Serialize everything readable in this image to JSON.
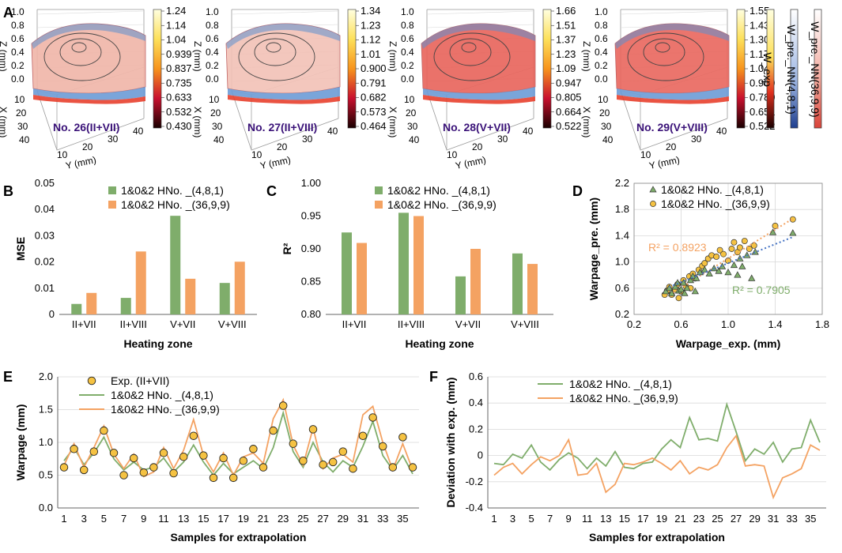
{
  "panel_labels": [
    "A",
    "B",
    "C",
    "D",
    "E",
    "F"
  ],
  "surfaces": [
    {
      "label": "No. 26(II+VII)",
      "colorbar": [
        "1.24",
        "1.14",
        "1.04",
        "0.939",
        "0.837",
        "0.735",
        "0.633",
        "0.532",
        "0.430"
      ],
      "tint": "#f0b5a8"
    },
    {
      "label": "No. 27(II+VIII)",
      "colorbar": [
        "1.34",
        "1.23",
        "1.12",
        "1.01",
        "0.900",
        "0.791",
        "0.682",
        "0.573",
        "0.464"
      ],
      "tint": "#f2c1b6"
    },
    {
      "label": "No. 28(V+VII)",
      "colorbar": [
        "1.66",
        "1.51",
        "1.37",
        "1.23",
        "1.09",
        "0.947",
        "0.805",
        "0.664",
        "0.522"
      ],
      "tint": "#e8635a"
    },
    {
      "label": "No. 29(V+VIII)",
      "colorbar": [
        "1.55",
        "1.43",
        "1.30",
        "1.17",
        "1.04",
        "0.909",
        "0.780",
        "0.651",
        "0.522"
      ],
      "tint": "#e9675e"
    }
  ],
  "axes3d": {
    "z_label": "Z (mm)",
    "x_label": "X (mm)",
    "y_label": "Y (mm)",
    "z_ticks": [
      "1.0",
      "0.8",
      "0.6",
      "0.4",
      "0.2",
      "0.0"
    ],
    "x_ticks": [
      "10",
      "20",
      "30",
      "40"
    ],
    "y_ticks": [
      "10",
      "20",
      "30",
      "40"
    ]
  },
  "legend_bars": [
    "W_exp",
    "W_pre._NN(4,8,1)",
    "W_pre._NN(36,9,9)"
  ],
  "colors": {
    "green": "#7fad6b",
    "orange": "#f4a262",
    "blue": "#4472c4",
    "gold": "#f5c242",
    "grid": "#d9d9d9",
    "title_purple": "#3a1278"
  },
  "chart_data": [
    {
      "id": "B",
      "type": "bar",
      "categories": [
        "II+VII",
        "II+VIII",
        "V+VII",
        "V+VIII"
      ],
      "series": [
        {
          "name": "1&0&2 HNo. _(4,8,1)",
          "values": [
            0.004,
            0.0063,
            0.0376,
            0.012
          ]
        },
        {
          "name": "1&0&2 HNo. _(36,9,9)",
          "values": [
            0.0082,
            0.024,
            0.0136,
            0.0201
          ]
        }
      ],
      "xlabel": "Heating zone",
      "ylabel": "MSE",
      "ylim": [
        0,
        0.05
      ],
      "yticks": [
        "0",
        "0.01",
        "0.02",
        "0.03",
        "0.04",
        "0.05"
      ]
    },
    {
      "id": "C",
      "type": "bar",
      "categories": [
        "II+VII",
        "II+VIII",
        "V+VII",
        "V+VIII"
      ],
      "series": [
        {
          "name": "1&0&2 HNo. _(4,8,1)",
          "values": [
            0.925,
            0.955,
            0.858,
            0.893
          ]
        },
        {
          "name": "1&0&2 HNo. _(36,9,9)",
          "values": [
            0.909,
            0.95,
            0.9,
            0.877
          ]
        }
      ],
      "xlabel": "Heating zone",
      "ylabel": "R²",
      "ylim": [
        0.8,
        1.0
      ],
      "yticks": [
        "0.80",
        "0.85",
        "0.90",
        "0.95",
        "1.00"
      ]
    },
    {
      "id": "D",
      "type": "scatter",
      "series": [
        {
          "name": "1&0&2 HNo. _(4,8,1)",
          "marker": "triangle",
          "fit_r2": "R² = 0.7905",
          "fit": [
            [
              0.5,
              0.62
            ],
            [
              1.55,
              1.38
            ]
          ],
          "points": [
            [
              0.47,
              0.55
            ],
            [
              0.5,
              0.6
            ],
            [
              0.52,
              0.52
            ],
            [
              0.55,
              0.62
            ],
            [
              0.58,
              0.56
            ],
            [
              0.6,
              0.58
            ],
            [
              0.62,
              0.68
            ],
            [
              0.65,
              0.6
            ],
            [
              0.68,
              0.72
            ],
            [
              0.7,
              0.78
            ],
            [
              0.73,
              0.75
            ],
            [
              0.76,
              0.84
            ],
            [
              0.8,
              0.88
            ],
            [
              0.84,
              0.82
            ],
            [
              0.88,
              0.9
            ],
            [
              0.92,
              0.86
            ],
            [
              0.95,
              0.93
            ],
            [
              1.0,
              0.84
            ],
            [
              1.05,
              0.95
            ],
            [
              1.08,
              0.8
            ],
            [
              1.1,
              1.05
            ],
            [
              1.12,
              0.93
            ],
            [
              1.16,
              1.1
            ],
            [
              1.2,
              0.75
            ],
            [
              1.23,
              1.15
            ],
            [
              1.38,
              1.45
            ],
            [
              1.55,
              1.44
            ],
            [
              0.57,
              0.68
            ],
            [
              0.63,
              0.52
            ],
            [
              0.72,
              0.55
            ]
          ]
        },
        {
          "name": "1&0&2 HNo. _(36,9,9)",
          "marker": "circle",
          "fit_r2": "R² = 0.8923",
          "fit": [
            [
              0.5,
              0.5
            ],
            [
              1.55,
              1.66
            ]
          ],
          "points": [
            [
              0.46,
              0.5
            ],
            [
              0.48,
              0.56
            ],
            [
              0.5,
              0.62
            ],
            [
              0.52,
              0.5
            ],
            [
              0.55,
              0.58
            ],
            [
              0.57,
              0.66
            ],
            [
              0.6,
              0.55
            ],
            [
              0.62,
              0.72
            ],
            [
              0.64,
              0.63
            ],
            [
              0.67,
              0.78
            ],
            [
              0.7,
              0.82
            ],
            [
              0.72,
              0.75
            ],
            [
              0.75,
              0.88
            ],
            [
              0.78,
              0.94
            ],
            [
              0.8,
              0.98
            ],
            [
              0.83,
              1.05
            ],
            [
              0.86,
              1.1
            ],
            [
              0.9,
              1.08
            ],
            [
              0.93,
              1.18
            ],
            [
              0.96,
              1.12
            ],
            [
              1.0,
              1.02
            ],
            [
              1.03,
              1.2
            ],
            [
              1.05,
              1.3
            ],
            [
              1.08,
              1.15
            ],
            [
              1.1,
              1.22
            ],
            [
              1.14,
              1.32
            ],
            [
              1.18,
              1.2
            ],
            [
              1.22,
              1.25
            ],
            [
              1.4,
              1.55
            ],
            [
              1.55,
              1.65
            ],
            [
              0.58,
              0.45
            ],
            [
              0.68,
              0.6
            ]
          ]
        }
      ],
      "xlabel": "Warpage_exp. (mm)",
      "ylabel": "Warpage_pre. (mm)",
      "xlim": [
        0.2,
        1.8
      ],
      "ylim": [
        0.2,
        2.2
      ],
      "xticks": [
        "0.2",
        "0.6",
        "1.0",
        "1.4",
        "1.8"
      ],
      "yticks": [
        "0.2",
        "0.6",
        "1.0",
        "1.4",
        "1.8",
        "2.2"
      ]
    },
    {
      "id": "E",
      "type": "line",
      "x": [
        1,
        2,
        3,
        4,
        5,
        6,
        7,
        8,
        9,
        10,
        11,
        12,
        13,
        14,
        15,
        16,
        17,
        18,
        19,
        20,
        21,
        22,
        23,
        24,
        25,
        26,
        27,
        28,
        29,
        30,
        31,
        32,
        33,
        34,
        35,
        36
      ],
      "series": [
        {
          "name": "Exp. (II+VII)",
          "marker": "circle",
          "values": [
            0.62,
            0.9,
            0.58,
            0.86,
            1.18,
            0.84,
            0.5,
            0.76,
            0.54,
            0.62,
            0.84,
            0.53,
            0.78,
            1.1,
            0.8,
            0.46,
            0.76,
            0.46,
            0.72,
            0.9,
            0.62,
            1.18,
            1.56,
            0.98,
            0.72,
            1.2,
            0.66,
            0.7,
            0.86,
            0.6,
            1.1,
            1.38,
            0.94,
            0.62,
            1.08,
            0.62
          ]
        },
        {
          "name": "1&0&2 HNo. _(4,8,1)",
          "values": [
            0.72,
            0.92,
            0.66,
            0.84,
            1.08,
            0.75,
            0.58,
            0.7,
            0.58,
            0.62,
            0.76,
            0.55,
            0.7,
            0.96,
            0.7,
            0.5,
            0.68,
            0.52,
            0.62,
            0.72,
            0.6,
            0.92,
            1.45,
            0.86,
            0.62,
            1.0,
            0.7,
            0.55,
            0.72,
            0.62,
            0.94,
            1.32,
            0.8,
            0.58,
            0.8,
            0.52
          ]
        },
        {
          "name": "1&0&2 HNo. _(36,9,9)",
          "values": [
            0.65,
            0.98,
            0.62,
            0.92,
            1.25,
            0.82,
            0.6,
            0.82,
            0.48,
            0.55,
            0.92,
            0.6,
            0.88,
            1.35,
            0.8,
            0.55,
            0.84,
            0.5,
            0.78,
            0.84,
            0.68,
            1.36,
            1.65,
            0.96,
            0.65,
            1.22,
            0.6,
            0.76,
            0.82,
            0.7,
            1.42,
            1.55,
            1.0,
            0.58,
            0.98,
            0.58
          ]
        }
      ],
      "xlabel": "Samples for extrapolation",
      "ylabel": "Warpage (mm)",
      "ylim": [
        0,
        2.0
      ],
      "yticks": [
        "0.0",
        "0.5",
        "1.0",
        "1.5",
        "2.0"
      ],
      "xticks": [
        "1",
        "3",
        "5",
        "7",
        "9",
        "11",
        "13",
        "15",
        "17",
        "19",
        "21",
        "23",
        "25",
        "27",
        "29",
        "31",
        "33",
        "35"
      ]
    },
    {
      "id": "F",
      "type": "line",
      "x": [
        1,
        2,
        3,
        4,
        5,
        6,
        7,
        8,
        9,
        10,
        11,
        12,
        13,
        14,
        15,
        16,
        17,
        18,
        19,
        20,
        21,
        22,
        23,
        24,
        25,
        26,
        27,
        28,
        29,
        30,
        31,
        32,
        33,
        34,
        35,
        36
      ],
      "series": [
        {
          "name": "1&0&2 HNo. _(4,8,1)",
          "values": [
            -0.06,
            -0.07,
            0.01,
            -0.02,
            0.08,
            -0.05,
            -0.11,
            -0.03,
            0.02,
            -0.02,
            -0.1,
            -0.02,
            -0.08,
            0.03,
            -0.09,
            -0.1,
            -0.06,
            -0.05,
            0.05,
            0.12,
            0.06,
            0.29,
            0.12,
            0.13,
            0.11,
            0.39,
            0.18,
            -0.04,
            0.05,
            0.01,
            0.1,
            -0.05,
            0.05,
            0.06,
            0.27,
            0.1
          ]
        },
        {
          "name": "1&0&2 HNo. _(36,9,9)",
          "values": [
            -0.15,
            -0.09,
            -0.06,
            -0.14,
            -0.07,
            -0.01,
            -0.04,
            0.0,
            0.12,
            -0.15,
            -0.14,
            -0.06,
            -0.28,
            -0.22,
            -0.06,
            -0.07,
            -0.05,
            -0.02,
            -0.06,
            -0.11,
            -0.04,
            -0.14,
            -0.09,
            -0.11,
            -0.07,
            0.06,
            0.15,
            -0.08,
            -0.07,
            -0.08,
            -0.32,
            -0.17,
            -0.14,
            -0.1,
            0.08,
            0.04
          ]
        }
      ],
      "xlabel": "Samples for extrapolation",
      "ylabel": "Deviation with exp. (mm)",
      "ylim": [
        -0.4,
        0.6
      ],
      "yticks": [
        "-0.4",
        "-0.2",
        "0",
        "0.2",
        "0.4",
        "0.6"
      ],
      "xticks": [
        "1",
        "3",
        "5",
        "7",
        "9",
        "11",
        "13",
        "15",
        "17",
        "19",
        "21",
        "23",
        "25",
        "27",
        "29",
        "31",
        "33",
        "35"
      ]
    }
  ]
}
